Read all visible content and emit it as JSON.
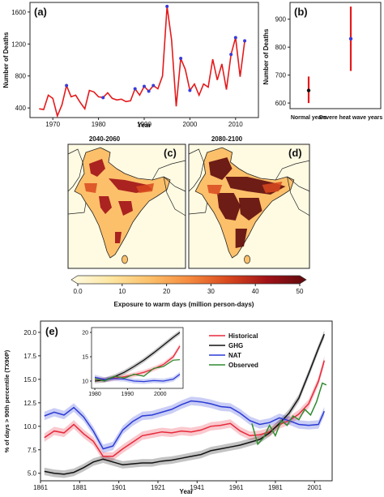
{
  "chart_data": [
    {
      "panel": "(a)",
      "type": "line",
      "xlabel": "Year",
      "ylabel": "Number of Deaths",
      "xlim": [
        1965,
        2015
      ],
      "ylim": [
        280,
        1720
      ],
      "xticks": [
        1970,
        1980,
        1990,
        2000,
        2010
      ],
      "yticks": [
        400,
        800,
        1200,
        1600
      ],
      "line_color": "#e41a1c",
      "marker_color": "#3b3bd6",
      "x": [
        1967,
        1968,
        1969,
        1970,
        1971,
        1972,
        1973,
        1974,
        1975,
        1976,
        1977,
        1978,
        1979,
        1980,
        1981,
        1982,
        1983,
        1984,
        1985,
        1986,
        1987,
        1988,
        1989,
        1990,
        1991,
        1992,
        1993,
        1994,
        1995,
        1996,
        1997,
        1998,
        1999,
        2000,
        2001,
        2002,
        2003,
        2004,
        2005,
        2006,
        2007,
        2008,
        2009,
        2010,
        2011,
        2012
      ],
      "y": [
        390,
        380,
        560,
        520,
        300,
        440,
        680,
        540,
        560,
        470,
        390,
        620,
        600,
        540,
        530,
        590,
        520,
        500,
        510,
        480,
        490,
        640,
        560,
        670,
        610,
        680,
        640,
        800,
        1670,
        1250,
        420,
        1020,
        880,
        620,
        700,
        560,
        700,
        660,
        1010,
        750,
        950,
        630,
        1070,
        1280,
        790,
        1240
      ],
      "marked_points": [
        1973,
        1981,
        1988,
        1990,
        1991,
        1992,
        1995,
        1998,
        2000,
        2009,
        2010,
        2012
      ]
    },
    {
      "panel": "(b)",
      "type": "errorbar",
      "ylabel": "Number of Deaths",
      "ylim": [
        580,
        960
      ],
      "yticks": [
        600,
        700,
        800,
        900
      ],
      "categories": [
        "Normal years",
        "Severe heat wave years"
      ],
      "values": [
        645,
        830
      ],
      "lower": [
        600,
        715
      ],
      "upper": [
        695,
        945
      ],
      "point_colors": [
        "#111111",
        "#3b3bd6"
      ],
      "bar_color": "#e41a1c"
    },
    {
      "panel": "(c)",
      "type": "heatmap",
      "title": "2040-2060",
      "description_of_variable": "Exposure to warm days (million person-days)"
    },
    {
      "panel": "(d)",
      "type": "heatmap",
      "title": "2080-2100"
    },
    {
      "type": "colorbar",
      "label": "Exposure to warm days (million person-days)",
      "ticks": [
        0,
        10,
        20,
        30,
        40,
        50
      ],
      "tick_labels": [
        "0.0",
        "10",
        "20",
        "30",
        "40",
        "50"
      ],
      "colors": [
        "#fffbe3",
        "#fde6a2",
        "#fcc06a",
        "#f58b3f",
        "#d9481e",
        "#a11218",
        "#5e0a0d"
      ]
    },
    {
      "panel": "(e)",
      "type": "line",
      "xlabel": "Year",
      "ylabel": "% of days > 90th percentile (TX90P)",
      "xlim": [
        1861,
        2010
      ],
      "ylim": [
        4.2,
        21.2
      ],
      "xticks": [
        1861,
        1881,
        1901,
        1921,
        1941,
        1961,
        1981,
        2001
      ],
      "yticks": [
        5.0,
        7.5,
        10.0,
        12.5,
        15.0,
        17.5,
        20.0
      ],
      "ytick_labels": [
        "5.0",
        "7.5",
        "10.0",
        "12.5",
        "15.0",
        "17.5",
        "20.0"
      ],
      "legend": [
        "Historical",
        "GHG",
        "NAT",
        "Observed"
      ],
      "legend_position": "top-right",
      "series": [
        {
          "name": "Historical",
          "color": "#e8283a",
          "x": [
            1863,
            1868,
            1873,
            1878,
            1883,
            1888,
            1893,
            1898,
            1903,
            1908,
            1913,
            1918,
            1923,
            1928,
            1933,
            1938,
            1943,
            1948,
            1953,
            1958,
            1963,
            1968,
            1973,
            1978,
            1983,
            1988,
            1993,
            1998,
            2003,
            2006
          ],
          "y": [
            8.8,
            9.5,
            9.3,
            10.2,
            9.2,
            8.4,
            6.8,
            6.8,
            7.6,
            8.3,
            9.0,
            9.2,
            9.4,
            9.3,
            9.5,
            9.4,
            9.6,
            10.0,
            10.1,
            10.3,
            9.5,
            9.0,
            9.1,
            9.4,
            10.2,
            10.6,
            11.3,
            12.4,
            14.8,
            17.0
          ]
        },
        {
          "name": "GHG",
          "color": "#111111",
          "x": [
            1863,
            1868,
            1873,
            1878,
            1883,
            1888,
            1893,
            1898,
            1903,
            1908,
            1913,
            1918,
            1923,
            1928,
            1933,
            1938,
            1943,
            1948,
            1953,
            1958,
            1963,
            1968,
            1973,
            1978,
            1983,
            1988,
            1993,
            1998,
            2003,
            2006
          ],
          "y": [
            5.2,
            5.0,
            4.9,
            5.1,
            5.6,
            6.2,
            6.5,
            6.2,
            5.9,
            6.0,
            6.1,
            6.1,
            6.3,
            6.4,
            6.6,
            6.8,
            7.0,
            7.4,
            7.6,
            7.8,
            8.0,
            8.3,
            8.6,
            9.3,
            10.3,
            11.4,
            13.0,
            15.6,
            18.3,
            19.8
          ]
        },
        {
          "name": "NAT",
          "color": "#2b3bd6",
          "x": [
            1863,
            1868,
            1873,
            1878,
            1883,
            1888,
            1893,
            1898,
            1903,
            1908,
            1913,
            1918,
            1923,
            1928,
            1933,
            1938,
            1943,
            1948,
            1953,
            1958,
            1963,
            1968,
            1973,
            1978,
            1983,
            1988,
            1993,
            1998,
            2003,
            2006
          ],
          "y": [
            11.1,
            11.5,
            11.2,
            12.0,
            11.0,
            9.5,
            7.6,
            7.9,
            9.6,
            10.5,
            11.1,
            11.2,
            11.5,
            11.8,
            12.3,
            12.7,
            12.6,
            12.4,
            12.1,
            12.0,
            11.4,
            10.6,
            10.2,
            10.4,
            10.9,
            10.6,
            10.2,
            10.1,
            10.2,
            11.6
          ]
        },
        {
          "name": "Observed",
          "color": "#2e8b2e",
          "x": [
            1969,
            1972,
            1975,
            1978,
            1981,
            1984,
            1987,
            1990,
            1993,
            1996,
            1999,
            2002,
            2005,
            2007
          ],
          "y": [
            10.3,
            8.1,
            8.8,
            10.1,
            9.0,
            10.6,
            10.1,
            11.1,
            10.7,
            11.8,
            11.2,
            12.6,
            14.6,
            14.4
          ]
        }
      ]
    },
    {
      "panel": "(e) inset",
      "type": "line",
      "xlim": [
        1979,
        2007
      ],
      "ylim": [
        8.5,
        21
      ],
      "xticks": [
        1980,
        1990,
        2000
      ],
      "yticks": [
        10,
        15,
        20
      ],
      "series": [
        {
          "name": "Historical",
          "x": [
            1980,
            1983,
            1986,
            1989,
            1992,
            1995,
            1998,
            2001,
            2004,
            2006
          ],
          "y": [
            10.4,
            10.2,
            10.6,
            10.9,
            11.3,
            11.8,
            12.5,
            13.4,
            15.0,
            17.2
          ]
        },
        {
          "name": "GHG",
          "x": [
            1980,
            1983,
            1986,
            1989,
            1992,
            1995,
            1998,
            2001,
            2004,
            2006
          ],
          "y": [
            10.0,
            10.2,
            10.9,
            11.8,
            13.0,
            14.3,
            15.8,
            17.4,
            19.0,
            20.0
          ]
        },
        {
          "name": "NAT",
          "x": [
            1980,
            1983,
            1986,
            1989,
            1992,
            1995,
            1998,
            2001,
            2004,
            2006
          ],
          "y": [
            10.8,
            10.3,
            10.5,
            10.4,
            10.0,
            9.9,
            10.1,
            10.0,
            10.4,
            11.4
          ]
        },
        {
          "name": "Observed",
          "x": [
            1980,
            1983,
            1986,
            1989,
            1992,
            1995,
            1998,
            2001,
            2004,
            2006
          ],
          "y": [
            10.5,
            10.0,
            11.0,
            10.6,
            11.4,
            11.0,
            12.6,
            13.0,
            14.3,
            14.4
          ]
        }
      ]
    }
  ]
}
